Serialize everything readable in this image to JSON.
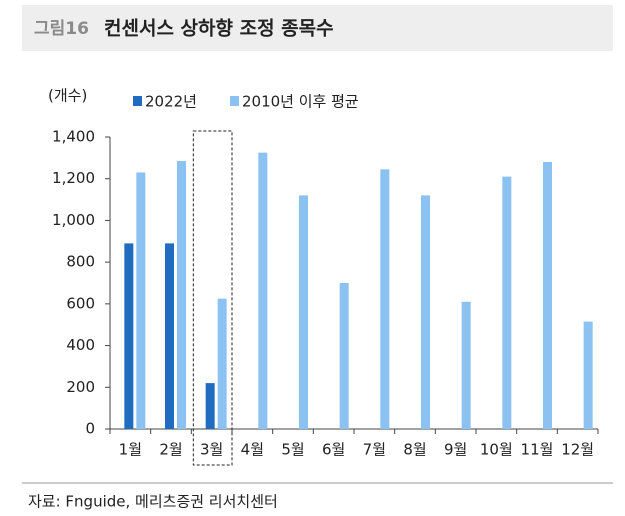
{
  "chart_data": {
    "type": "bar",
    "figure_label": "그림16",
    "title": "컨센서스 상하향 조정 종목수",
    "y_label": "(개수)",
    "categories": [
      "1월",
      "2월",
      "3월",
      "4월",
      "5월",
      "6월",
      "7월",
      "8월",
      "9월",
      "10월",
      "11월",
      "12월"
    ],
    "series": [
      {
        "name": "2022년",
        "color": "#1f6cc0",
        "values": [
          890,
          890,
          220,
          null,
          null,
          null,
          null,
          null,
          null,
          null,
          null,
          null
        ]
      },
      {
        "name": "2010년 이후 평균",
        "color": "#8cc2f2",
        "values": [
          1230,
          1285,
          625,
          1325,
          1120,
          700,
          1245,
          1120,
          610,
          1210,
          1280,
          515
        ]
      }
    ],
    "ylim": [
      0,
      1400
    ],
    "yticks": [
      0,
      200,
      400,
      600,
      800,
      {
        "value": 1000,
        "label": "1,000"
      },
      {
        "value": 1200,
        "label": "1,200"
      },
      {
        "value": 1400,
        "label": "1,400"
      }
    ],
    "highlight_category": 2,
    "source": "자료: Fnguide, 메리츠증권 리서치센터"
  }
}
